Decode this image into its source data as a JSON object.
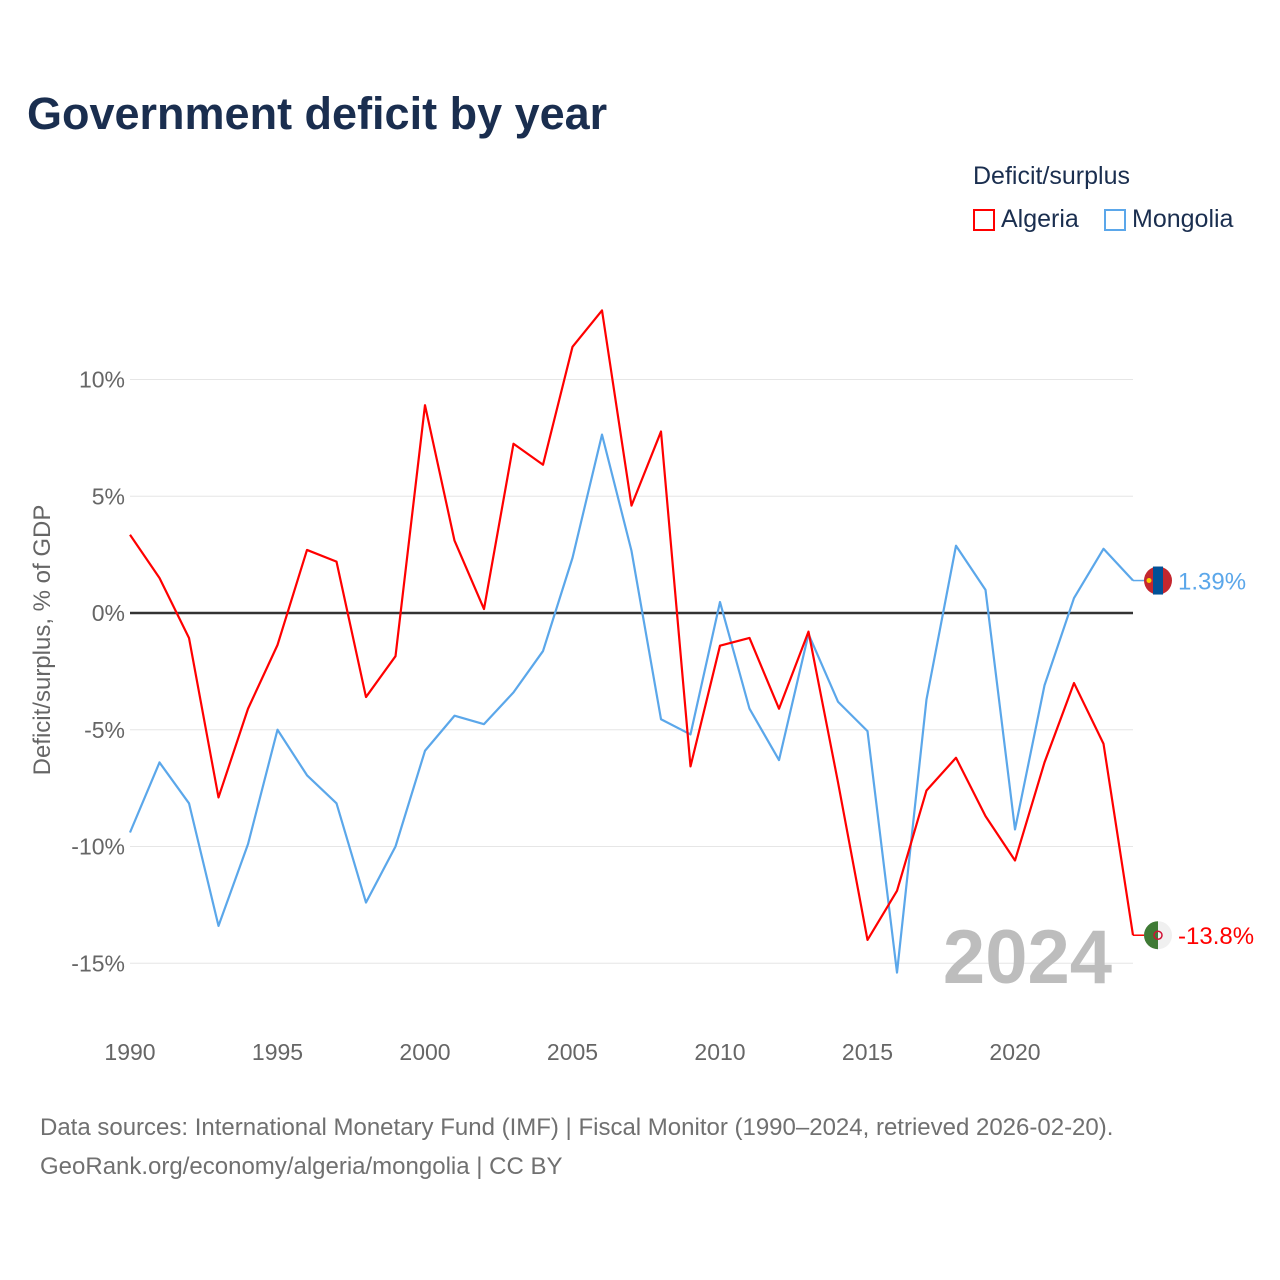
{
  "chart_data": {
    "type": "line",
    "title": "Government deficit by year",
    "xlabel": "",
    "ylabel": "Deficit/surplus, % of GDP",
    "xlim": [
      1990,
      2024
    ],
    "ylim": [
      -17.5,
      14
    ],
    "grid": true,
    "x_ticks": [
      1990,
      1995,
      2000,
      2005,
      2010,
      2015,
      2020
    ],
    "y_ticks": [
      10,
      5,
      0,
      -5,
      -10,
      -15
    ],
    "y_tick_labels": [
      "10%",
      "5%",
      "0%",
      "-5%",
      "-10%",
      "-15%"
    ],
    "legend_title": "Deficit/surplus",
    "legend_position": "top-right",
    "year_watermark": "2024",
    "x": [
      1990,
      1991,
      1992,
      1993,
      1994,
      1995,
      1996,
      1997,
      1998,
      1999,
      2000,
      2001,
      2002,
      2003,
      2004,
      2005,
      2006,
      2007,
      2008,
      2009,
      2010,
      2011,
      2012,
      2013,
      2014,
      2015,
      2016,
      2017,
      2018,
      2019,
      2020,
      2021,
      2022,
      2023,
      2024
    ],
    "series": [
      {
        "name": "Algeria",
        "color": "#ff0000",
        "end_label": "-13.8%",
        "values": [
          3.35,
          1.5,
          -1.07,
          -7.9,
          -4.1,
          -1.37,
          2.7,
          2.2,
          -3.6,
          -1.85,
          8.9,
          3.1,
          0.17,
          7.25,
          6.35,
          11.4,
          12.96,
          4.6,
          7.77,
          -6.57,
          -1.4,
          -1.07,
          -4.1,
          -0.8,
          -7.25,
          -14.0,
          -11.9,
          -7.6,
          -6.2,
          -8.7,
          -10.6,
          -6.4,
          -3.0,
          -5.6,
          -13.8
        ]
      },
      {
        "name": "Mongolia",
        "color": "#5ba7ea",
        "end_label": "1.39%",
        "values": [
          -9.4,
          -6.4,
          -8.15,
          -13.4,
          -9.9,
          -5.0,
          -6.95,
          -8.15,
          -12.4,
          -10.0,
          -5.9,
          -4.4,
          -4.76,
          -3.4,
          -1.63,
          2.36,
          7.64,
          2.66,
          -4.55,
          -5.2,
          0.47,
          -4.1,
          -6.3,
          -0.9,
          -3.8,
          -5.06,
          -15.4,
          -3.7,
          2.88,
          0.99,
          -9.27,
          -3.1,
          0.64,
          2.75,
          1.39
        ]
      }
    ]
  },
  "footer": {
    "line1": "Data sources: International Monetary Fund (IMF) | Fiscal Monitor (1990–2024, retrieved 2026-02-20).",
    "line2": "GeoRank.org/economy/algeria/mongolia | CC BY"
  }
}
